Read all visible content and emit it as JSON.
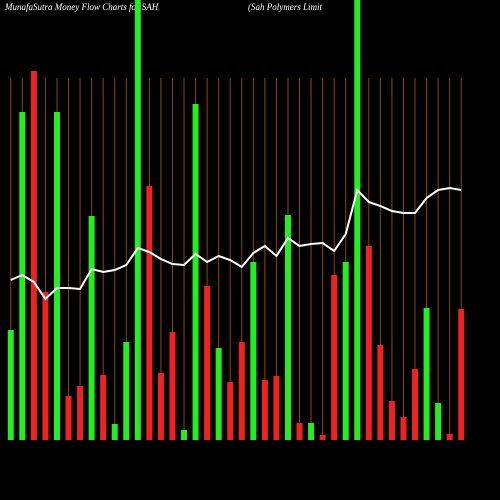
{
  "chart_data": {
    "type": "bar",
    "title": "MunafaSutra  Money Flow  Charts for SAH",
    "subtitle": "(Sah Polymers Limit",
    "categories": [
      null,
      null,
      null,
      null,
      null,
      null,
      null,
      null,
      null,
      null,
      null,
      null,
      null,
      null,
      null,
      null,
      null,
      null,
      null,
      null,
      null,
      null,
      null,
      null,
      null,
      null,
      null,
      null,
      null,
      null,
      null,
      null,
      null,
      null,
      null,
      null,
      null,
      null,
      null,
      null
    ],
    "values": [
      110,
      328,
      369,
      148,
      328,
      44,
      54,
      224,
      65,
      16,
      98,
      440,
      254,
      67,
      108,
      10,
      336,
      154,
      92,
      58,
      98,
      178,
      60,
      64,
      225,
      17,
      17,
      5,
      165,
      178,
      440,
      194,
      95,
      39,
      23,
      71,
      132,
      37,
      6,
      131
    ],
    "bar_colors": [
      "#22ee22",
      "#22ee22",
      "#ee2222",
      "#ee2222",
      "#22ee22",
      "#ee2222",
      "#ee2222",
      "#22ee22",
      "#ee2222",
      "#22ee22",
      "#22ee22",
      "#22ee22",
      "#ee2222",
      "#ee2222",
      "#ee2222",
      "#22ee22",
      "#22ee22",
      "#ee2222",
      "#22ee22",
      "#ee2222",
      "#ee2222",
      "#22ee22",
      "#ee2222",
      "#ee2222",
      "#22ee22",
      "#ee2222",
      "#22ee22",
      "#ee2222",
      "#ee2222",
      "#22ee22",
      "#22ee22",
      "#ee2222",
      "#ee2222",
      "#ee2222",
      "#ee2222",
      "#ee2222",
      "#22ee22",
      "#22ee22",
      "#ee2222",
      "#ee2222"
    ],
    "line": {
      "color": "#ffffff",
      "values": [
        160,
        165,
        158,
        141,
        152,
        152,
        151,
        171,
        168,
        170,
        175,
        192,
        188,
        181,
        176,
        175,
        186,
        178,
        184,
        180,
        173,
        187,
        194,
        184,
        202,
        194,
        196,
        197,
        189,
        206,
        250,
        238,
        234,
        229,
        227,
        227,
        242,
        250,
        252,
        250
      ]
    },
    "ylim": [
      0,
      440
    ]
  }
}
